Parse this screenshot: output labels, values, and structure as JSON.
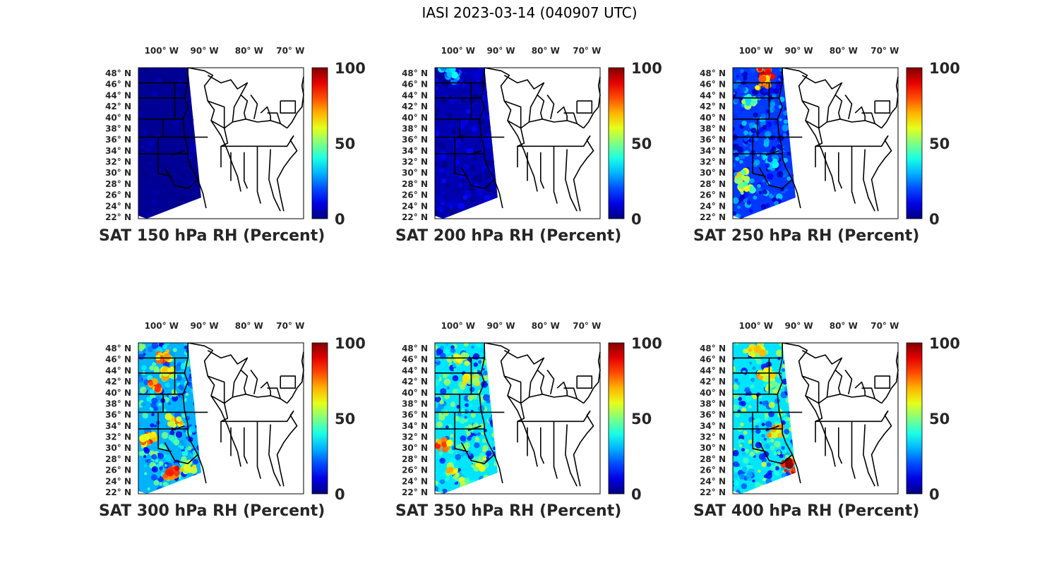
{
  "figure": {
    "title": "IASI 2023-03-14 (040907 UTC)"
  },
  "map": {
    "lon_ticks": [
      "100° W",
      "90° W",
      "80° W",
      "70° W"
    ],
    "lat_ticks": [
      "48° N",
      "46° N",
      "44° N",
      "42° N",
      "40° N",
      "38° N",
      "36° N",
      "34° N",
      "32° N",
      "30° N",
      "28° N",
      "26° N",
      "24° N",
      "22° N"
    ]
  },
  "colorbar": {
    "colormap": "jet",
    "range": [
      0,
      100
    ],
    "tick_labels": [
      "100",
      "50",
      "0"
    ]
  },
  "panels": [
    {
      "caption": "SAT 150 hPa RH (Percent)",
      "level_hpa": 150,
      "swath_rh": {
        "typical": 2,
        "min": 0,
        "max": 10
      }
    },
    {
      "caption": "SAT 200 hPa RH (Percent)",
      "level_hpa": 200,
      "swath_rh": {
        "typical": 5,
        "min": 0,
        "max": 40
      }
    },
    {
      "caption": "SAT 250 hPa RH (Percent)",
      "level_hpa": 250,
      "swath_rh": {
        "typical": 18,
        "min": 5,
        "max": 95
      }
    },
    {
      "caption": "SAT 300 hPa RH (Percent)",
      "level_hpa": 300,
      "swath_rh": {
        "typical": 30,
        "min": 10,
        "max": 95
      }
    },
    {
      "caption": "SAT 350 hPa RH (Percent)",
      "level_hpa": 350,
      "swath_rh": {
        "typical": 35,
        "min": 10,
        "max": 90
      }
    },
    {
      "caption": "SAT 400 hPa RH (Percent)",
      "level_hpa": 400,
      "swath_rh": {
        "typical": 35,
        "min": 10,
        "max": 100
      }
    }
  ]
}
